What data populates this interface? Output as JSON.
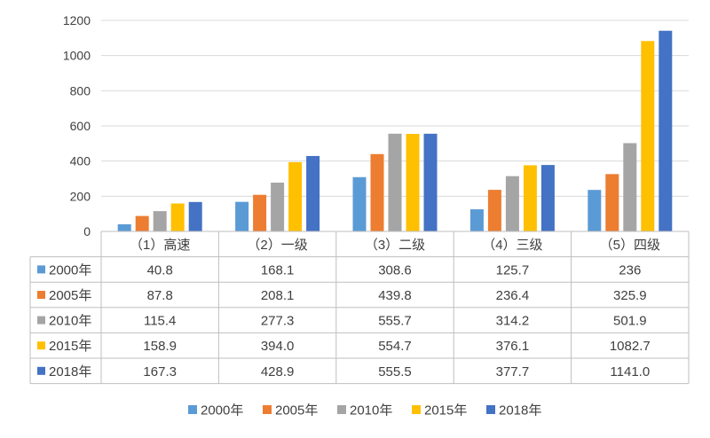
{
  "chart_data": {
    "type": "bar",
    "title": "",
    "xlabel": "",
    "ylabel": "",
    "ylim": [
      0,
      1200
    ],
    "yticks": [
      0,
      200,
      400,
      600,
      800,
      1000,
      1200
    ],
    "grid": "horizontal",
    "legend_position": "bottom",
    "categories": [
      "（1）高速",
      "（2）一级",
      "（3）二级",
      "（4）三级",
      "（5）四级"
    ],
    "series": [
      {
        "name": "2000年",
        "color": "#5B9BD5",
        "values": [
          40.8,
          168.1,
          308.6,
          125.7,
          236
        ],
        "labels": [
          "40.8",
          "168.1",
          "308.6",
          "125.7",
          "236"
        ]
      },
      {
        "name": "2005年",
        "color": "#ED7D31",
        "values": [
          87.8,
          208.1,
          439.8,
          236.4,
          325.9
        ],
        "labels": [
          "87.8",
          "208.1",
          "439.8",
          "236.4",
          "325.9"
        ]
      },
      {
        "name": "2010年",
        "color": "#A5A5A5",
        "values": [
          115.4,
          277.3,
          555.7,
          314.2,
          501.9
        ],
        "labels": [
          "115.4",
          "277.3",
          "555.7",
          "314.2",
          "501.9"
        ]
      },
      {
        "name": "2015年",
        "color": "#FFC000",
        "values": [
          158.9,
          394.0,
          554.7,
          376.1,
          1082.7
        ],
        "labels": [
          "158.9",
          "394.0",
          "554.7",
          "376.1",
          "1082.7"
        ]
      },
      {
        "name": "2018年",
        "color": "#4472C4",
        "values": [
          167.3,
          428.9,
          555.5,
          377.7,
          1141.0
        ],
        "labels": [
          "167.3",
          "428.9",
          "555.5",
          "377.7",
          "1141.0"
        ]
      }
    ],
    "gridline_color": "#D9D9D9"
  }
}
